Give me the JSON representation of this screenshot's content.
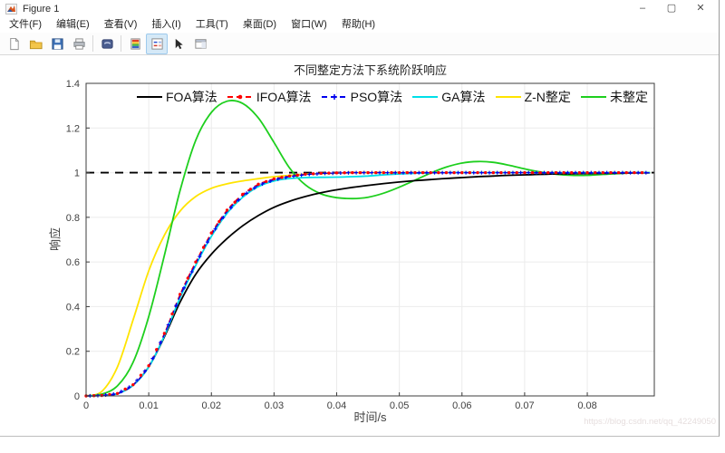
{
  "window": {
    "title": "Figure 1",
    "controls": {
      "minimize": "–",
      "maximize": "▢",
      "close": "✕"
    }
  },
  "menu_bar": {
    "items": [
      "文件(F)",
      "编辑(E)",
      "查看(V)",
      "插入(I)",
      "工具(T)",
      "桌面(D)",
      "窗口(W)",
      "帮助(H)"
    ]
  },
  "toolbar": {
    "buttons": [
      "new-figure",
      "open-file",
      "save-figure",
      "print-figure",
      "link-plot",
      "insert-colorbar",
      "insert-legend",
      "edit-plot",
      "open-property-inspector"
    ],
    "active_button": "insert-legend"
  },
  "watermark": "https://blog.csdn.net/qq_42249050",
  "chart_data": {
    "type": "line",
    "title": "不同整定方法下系统阶跃响应",
    "xlabel": "时间/s",
    "ylabel": "响应",
    "xlim": [
      0,
      0.0907
    ],
    "ylim": [
      0,
      1.4
    ],
    "xticks": [
      0,
      0.01,
      0.02,
      0.03,
      0.04,
      0.05,
      0.06,
      0.07,
      0.08
    ],
    "yticks": [
      0,
      0.2,
      0.4,
      0.6,
      0.8,
      1,
      1.2,
      1.4
    ],
    "grid": true,
    "legend_position": "top-inside-horizontal",
    "reference_line": {
      "y": 1.0,
      "style": "dashed",
      "color": "#000000"
    },
    "x": [
      0,
      0.0025,
      0.005,
      0.0075,
      0.01,
      0.0125,
      0.015,
      0.0175,
      0.02,
      0.0225,
      0.025,
      0.0275,
      0.03,
      0.0325,
      0.035,
      0.0375,
      0.04,
      0.0425,
      0.045,
      0.0475,
      0.05,
      0.0525,
      0.055,
      0.0575,
      0.06,
      0.0625,
      0.065,
      0.0675,
      0.07,
      0.0725,
      0.075,
      0.0775,
      0.08,
      0.0825,
      0.085,
      0.0875,
      0.09
    ],
    "series": [
      {
        "name": "FOA算法",
        "color": "#000000",
        "style": "solid",
        "marker": "none",
        "values": [
          0,
          0.002,
          0.01,
          0.048,
          0.13,
          0.265,
          0.42,
          0.545,
          0.635,
          0.705,
          0.762,
          0.808,
          0.845,
          0.872,
          0.893,
          0.91,
          0.923,
          0.934,
          0.943,
          0.951,
          0.958,
          0.964,
          0.969,
          0.974,
          0.978,
          0.982,
          0.985,
          0.988,
          0.99,
          0.992,
          0.994,
          0.995,
          0.996,
          0.997,
          0.998,
          0.999,
          0.999
        ]
      },
      {
        "name": "IFOA算法",
        "color": "#ff0000",
        "style": "dashed",
        "marker": "dot",
        "values": [
          0,
          0.002,
          0.011,
          0.05,
          0.135,
          0.28,
          0.455,
          0.6,
          0.73,
          0.832,
          0.903,
          0.948,
          0.972,
          0.985,
          0.993,
          0.997,
          0.999,
          1,
          1,
          1,
          1,
          1,
          1,
          1,
          1,
          1,
          1,
          1,
          1,
          1,
          1,
          1,
          1,
          1,
          1,
          1,
          1
        ]
      },
      {
        "name": "PSO算法",
        "color": "#0000ee",
        "style": "dashed",
        "marker": "plus",
        "values": [
          0,
          0.002,
          0.01,
          0.049,
          0.132,
          0.275,
          0.448,
          0.592,
          0.722,
          0.825,
          0.896,
          0.943,
          0.968,
          0.982,
          0.991,
          0.996,
          0.998,
          1,
          1,
          1,
          1,
          1,
          1,
          1,
          1,
          1,
          1,
          1,
          1,
          1,
          1,
          1,
          1,
          1,
          1,
          1,
          1
        ]
      },
      {
        "name": "GA算法",
        "color": "#00dfe8",
        "style": "solid",
        "marker": "none",
        "values": [
          0,
          0.002,
          0.01,
          0.048,
          0.13,
          0.27,
          0.44,
          0.585,
          0.715,
          0.818,
          0.89,
          0.938,
          0.963,
          0.974,
          0.978,
          0.979,
          0.98,
          0.982,
          0.985,
          0.99,
          0.994,
          0.997,
          0.999,
          1,
          1,
          1,
          1,
          1,
          1,
          1,
          1,
          1,
          1,
          1,
          1,
          1,
          1
        ]
      },
      {
        "name": "Z-N整定",
        "color": "#ffe400",
        "style": "solid",
        "marker": "none",
        "values": [
          0,
          0.02,
          0.13,
          0.34,
          0.56,
          0.72,
          0.828,
          0.893,
          0.93,
          0.95,
          0.963,
          0.973,
          0.982,
          0.988,
          0.993,
          0.996,
          0.998,
          1,
          1,
          1,
          1,
          1,
          1,
          1,
          1,
          1,
          1,
          1,
          1,
          1,
          1,
          1,
          1,
          1,
          1,
          1,
          1
        ]
      },
      {
        "name": "未整定",
        "color": "#1ecf1e",
        "style": "solid",
        "marker": "none",
        "values": [
          0,
          0.008,
          0.045,
          0.15,
          0.355,
          0.63,
          0.92,
          1.145,
          1.27,
          1.32,
          1.31,
          1.245,
          1.135,
          1.02,
          0.945,
          0.905,
          0.888,
          0.884,
          0.89,
          0.908,
          0.935,
          0.966,
          0.998,
          1.025,
          1.043,
          1.05,
          1.046,
          1.033,
          1.017,
          1.003,
          0.993,
          0.988,
          0.988,
          0.992,
          0.996,
          0.999,
          1
        ]
      }
    ]
  }
}
